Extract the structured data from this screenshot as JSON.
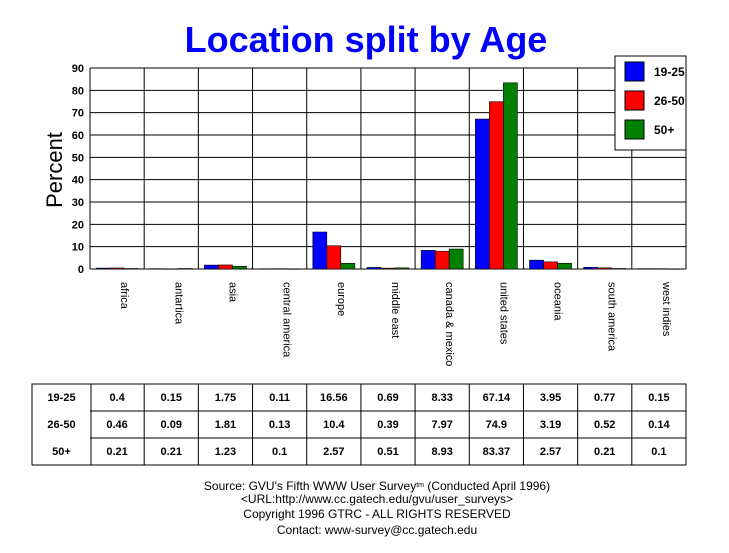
{
  "chart_data": {
    "type": "bar",
    "title": "Location split by Age",
    "ylabel": "Percent",
    "ylim": [
      0,
      90
    ],
    "yticks": [
      0,
      10,
      20,
      30,
      40,
      50,
      60,
      70,
      80,
      90
    ],
    "grid": true,
    "legend_position": "top-right",
    "categories": [
      "africa",
      "antartica",
      "asia",
      "central america",
      "europe",
      "middle east",
      "canada & mexico",
      "united states",
      "oceania",
      "south america",
      "west indies"
    ],
    "series": [
      {
        "name": "19-25",
        "color": "#0000ff",
        "values": [
          0.4,
          0.15,
          1.75,
          0.11,
          16.56,
          0.69,
          8.33,
          67.14,
          3.95,
          0.77,
          0.15
        ]
      },
      {
        "name": "26-50",
        "color": "#ff0000",
        "values": [
          0.46,
          0.09,
          1.81,
          0.13,
          10.4,
          0.39,
          7.97,
          74.9,
          3.19,
          0.52,
          0.14
        ]
      },
      {
        "name": "50+",
        "color": "#008000",
        "values": [
          0.21,
          0.21,
          1.23,
          0.1,
          2.57,
          0.51,
          8.93,
          83.37,
          2.57,
          0.21,
          0.1
        ]
      }
    ]
  },
  "footer": {
    "source": "Source: GVU's Fifth WWW User Survey",
    "tm": "tm",
    "conducted": "  (Conducted April 1996)",
    "url": "<URL:http://www.cc.gatech.edu/gvu/user_surveys>",
    "copyright": "Copyright 1996 GTRC -  ALL RIGHTS RESERVED",
    "contact": "Contact: www-survey@cc.gatech.edu"
  }
}
